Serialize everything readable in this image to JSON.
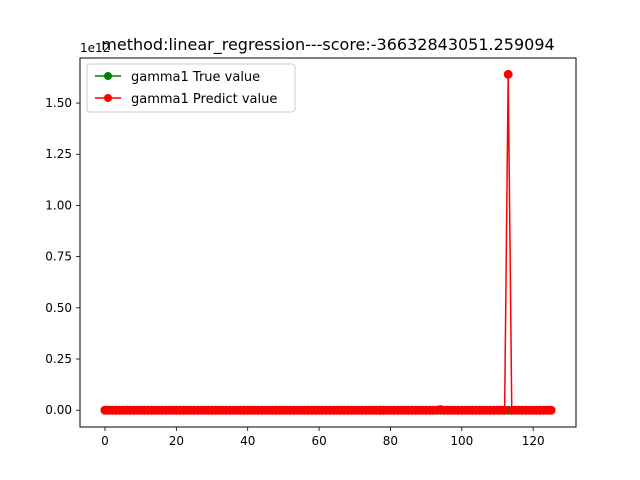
{
  "chart_data": {
    "type": "line",
    "title": "method:linear_regression---score:-36632843051.259094",
    "offset_text": "1e12",
    "xlim": [
      -7.0,
      132.0
    ],
    "ylim": [
      -0.082,
      1.72
    ],
    "x_ticks": [
      0,
      20,
      40,
      60,
      80,
      100,
      120
    ],
    "x_tick_labels": [
      "0",
      "20",
      "40",
      "60",
      "80",
      "100",
      "120"
    ],
    "y_ticks": [
      0.0,
      0.25,
      0.5,
      0.75,
      1.0,
      1.25,
      1.5
    ],
    "y_tick_labels": [
      "0.00",
      "0.25",
      "0.50",
      "0.75",
      "1.00",
      "1.25",
      "1.50"
    ],
    "legend_position": "upper-left",
    "grid": false,
    "series": [
      {
        "name": "gamma1 True value",
        "color": "#008000",
        "marker": "circle",
        "x_start": 0,
        "x_end": 125,
        "constant_value": 0.0
      },
      {
        "name": "gamma1 Predict value",
        "color": "#ff0000",
        "marker": "circle",
        "x_start": 0,
        "x_end": 125,
        "constant_value": 0.0,
        "spikes": [
          {
            "x": 113,
            "y": 1.64
          },
          {
            "x": 94,
            "y": 0.003
          }
        ]
      }
    ]
  }
}
